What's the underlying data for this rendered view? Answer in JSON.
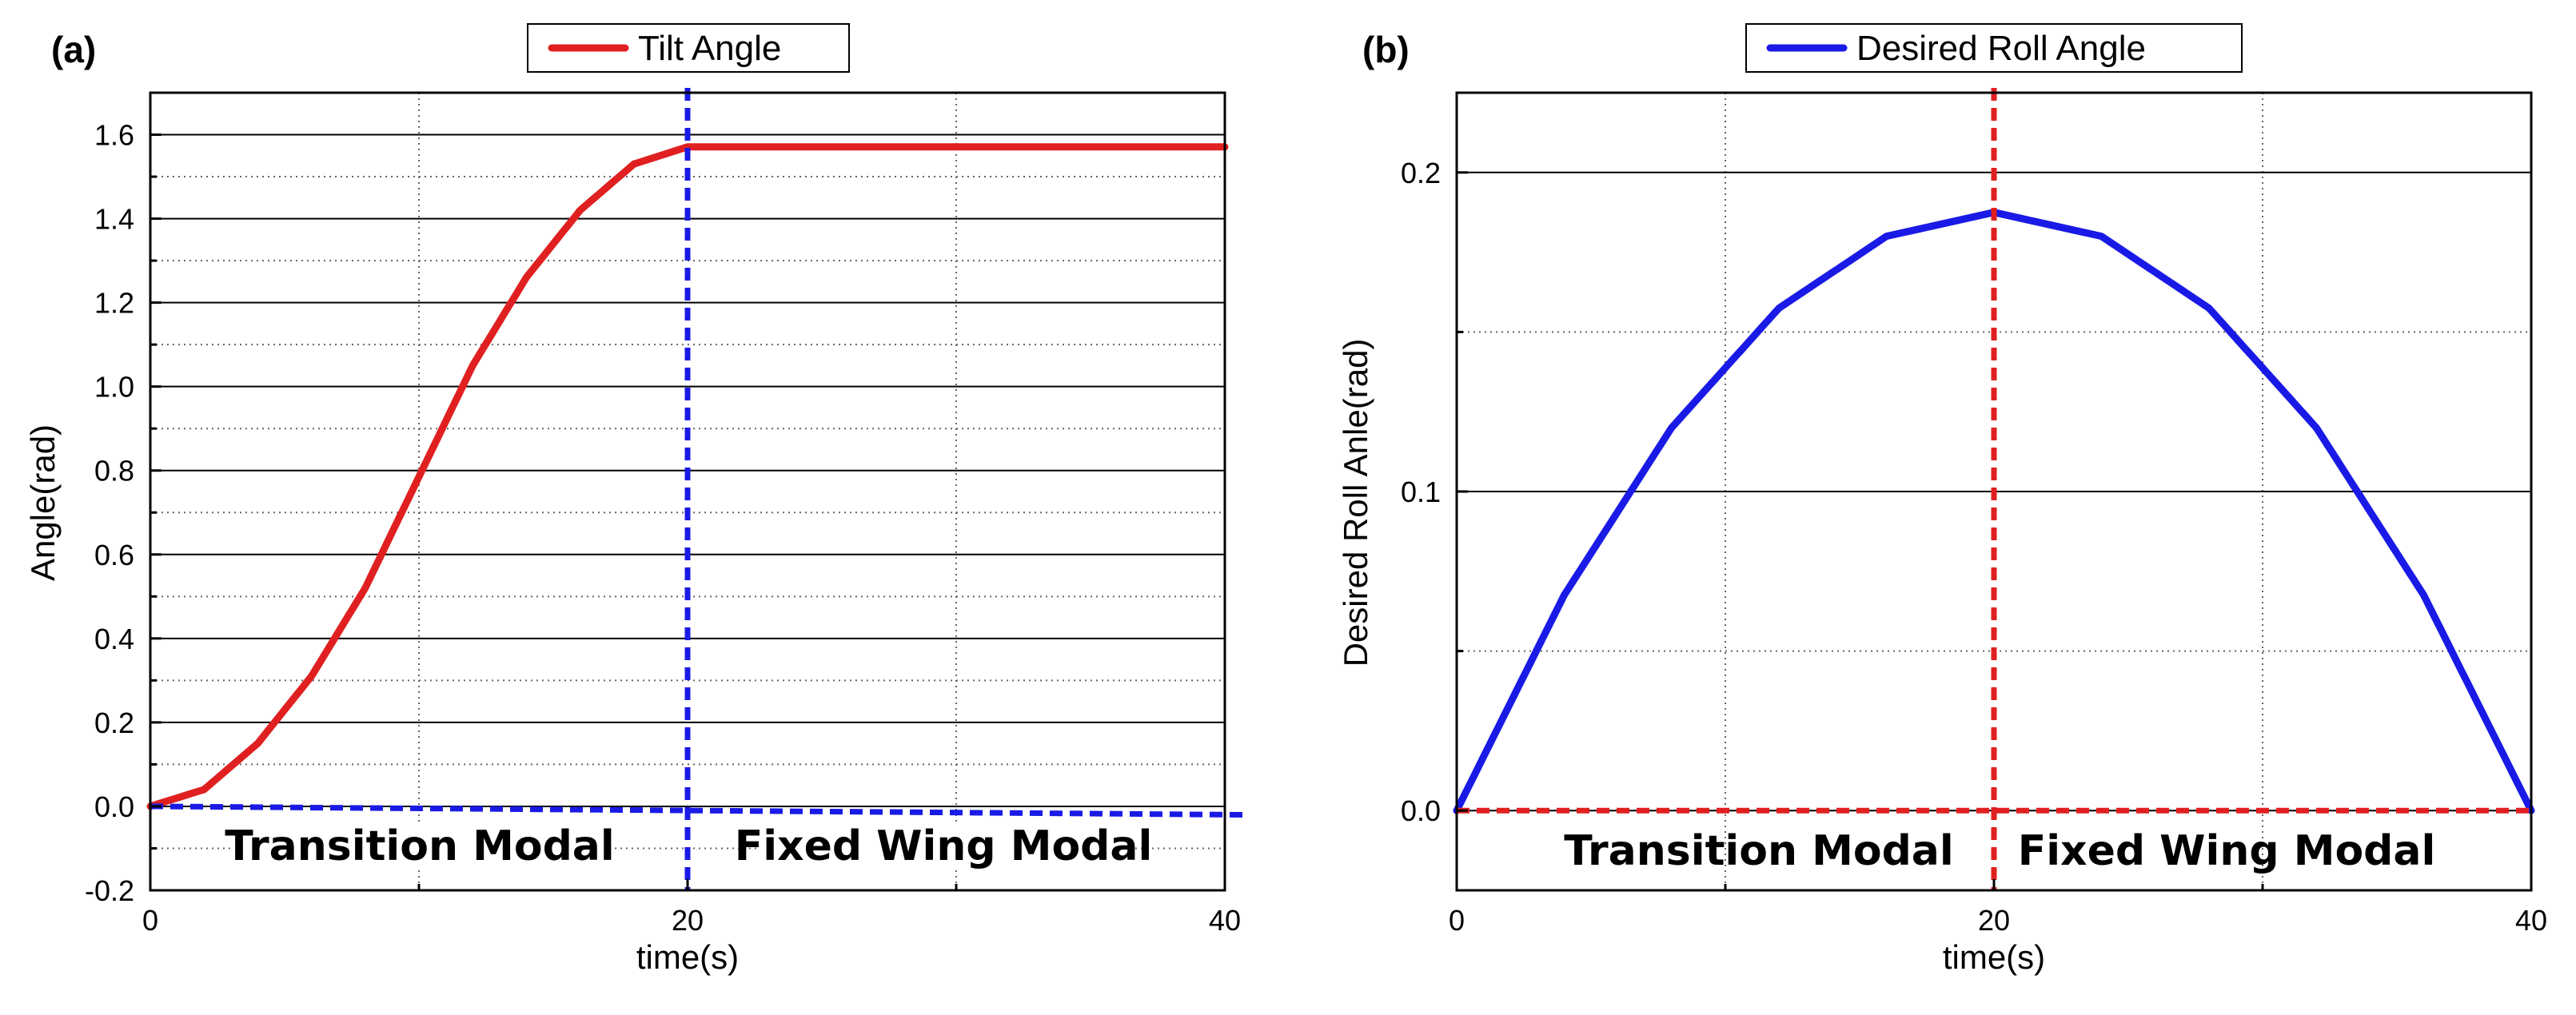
{
  "chart_data": [
    {
      "type": "line",
      "panel": "(a)",
      "xlabel": "time(s)",
      "ylabel": "Angle(rad)",
      "xlim": [
        0,
        40
      ],
      "ylim": [
        -0.2,
        1.7
      ],
      "xticks": [
        0,
        20,
        40
      ],
      "xtick_labels": [
        "0",
        "20",
        "40"
      ],
      "yticks": [
        -0.2,
        0.0,
        0.2,
        0.4,
        0.6,
        0.8,
        1.0,
        1.2,
        1.4,
        1.6
      ],
      "ytick_labels": [
        "-0.2",
        "0.0",
        "0.2",
        "0.4",
        "0.6",
        "0.8",
        "1.0",
        "1.2",
        "1.4",
        "1.6"
      ],
      "legend": [
        "Tilt Angle"
      ],
      "legend_position": "top-center",
      "series": [
        {
          "name": "Tilt Angle",
          "color": "#e02020",
          "style": "solid",
          "x": [
            0,
            2,
            4,
            6,
            8,
            10,
            12,
            14,
            16,
            18,
            20,
            24,
            28,
            32,
            36,
            40
          ],
          "y": [
            0.0,
            0.04,
            0.15,
            0.31,
            0.52,
            0.785,
            1.05,
            1.26,
            1.42,
            1.53,
            1.571,
            1.571,
            1.571,
            1.571,
            1.571,
            1.571
          ]
        },
        {
          "name": "baseline",
          "color": "#1a1ae6",
          "style": "dashed",
          "x": [
            0,
            40.8
          ],
          "y": [
            0.0,
            -0.02
          ]
        }
      ],
      "vlines": [
        {
          "x": 20,
          "color": "#1a1ae6",
          "style": "dashed"
        }
      ],
      "annotations": [
        "Transition Modal",
        "Fixed Wing Modal"
      ]
    },
    {
      "type": "line",
      "panel": "(b)",
      "xlabel": "time(s)",
      "ylabel": "Desired Roll Anle(rad)",
      "xlim": [
        0,
        40
      ],
      "ylim": [
        -0.025,
        0.225
      ],
      "xticks": [
        0,
        20,
        40
      ],
      "xtick_labels": [
        "0",
        "20",
        "40"
      ],
      "yticks": [
        0.0,
        0.1,
        0.2
      ],
      "ytick_labels": [
        "0.0",
        "0.1",
        "0.2"
      ],
      "legend": [
        "Desired Roll Angle"
      ],
      "legend_position": "top-center",
      "series": [
        {
          "name": "Desired Roll Angle",
          "color": "#1a1ae6",
          "style": "solid",
          "x": [
            0,
            4,
            8,
            12,
            16,
            20,
            24,
            28,
            32,
            36,
            40
          ],
          "y": [
            0.0,
            0.0675,
            0.12,
            0.1575,
            0.18,
            0.1875,
            0.18,
            0.1575,
            0.12,
            0.0675,
            0.0
          ]
        },
        {
          "name": "baseline",
          "color": "#e02020",
          "style": "dashed",
          "x": [
            0,
            40
          ],
          "y": [
            0.0,
            0.0
          ]
        }
      ],
      "vlines": [
        {
          "x": 20,
          "color": "#e02020",
          "style": "dashed"
        }
      ],
      "annotations": [
        "Transition Modal",
        "Fixed Wing Modal"
      ]
    }
  ]
}
